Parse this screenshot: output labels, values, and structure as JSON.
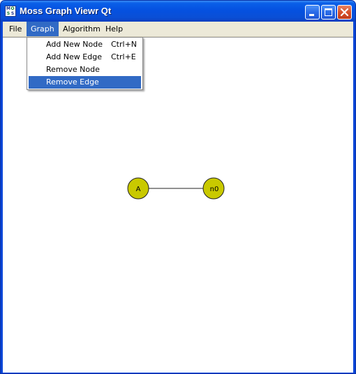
{
  "window": {
    "title": "Moss Graph Viewr Qt",
    "icon_text": [
      "M",
      "O",
      "S",
      "S"
    ]
  },
  "menubar": {
    "items": [
      "File",
      "Graph",
      "Algorithm",
      "Help"
    ],
    "active": "Graph"
  },
  "graph_menu": {
    "items": [
      {
        "label": "Add New Node",
        "shortcut": "Ctrl+N"
      },
      {
        "label": "Add New Edge",
        "shortcut": "Ctrl+E"
      },
      {
        "label": "Remove Node",
        "shortcut": ""
      },
      {
        "label": "Remove Edge",
        "shortcut": ""
      }
    ],
    "highlighted": "Remove Edge"
  },
  "graph": {
    "nodes": [
      {
        "label": "A"
      },
      {
        "label": "n0"
      }
    ],
    "edges": [
      {
        "from": "A",
        "to": "n0"
      }
    ],
    "node_color": "#c9c900"
  },
  "colors": {
    "titlebar": "#0551e0",
    "menu_highlight": "#316ac5",
    "menubar": "#ece9d8"
  }
}
